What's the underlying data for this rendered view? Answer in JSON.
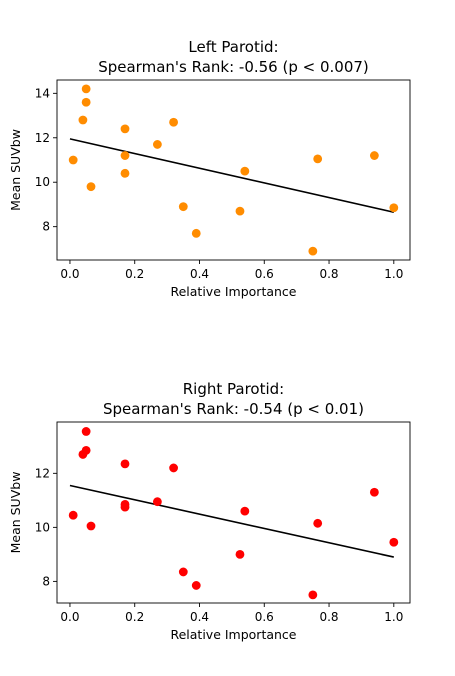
{
  "chart_data": [
    {
      "type": "scatter",
      "title": "Left Parotid:",
      "subtitle": "Spearman's Rank: -0.56 (p < 0.007)",
      "xlabel": "Relative Importance",
      "ylabel": "Mean SUVbw",
      "xlim": [
        -0.04,
        1.05
      ],
      "ylim": [
        6.5,
        14.6
      ],
      "xticks": [
        0.0,
        0.2,
        0.4,
        0.6,
        0.8,
        1.0
      ],
      "xtick_labels": [
        "0.0",
        "0.2",
        "0.4",
        "0.6",
        "0.8",
        "1.0"
      ],
      "yticks": [
        8,
        10,
        12,
        14
      ],
      "ytick_labels": [
        "8",
        "10",
        "12",
        "14"
      ],
      "grid": false,
      "color": "#ff8c00",
      "points": {
        "x": [
          0.01,
          0.04,
          0.05,
          0.05,
          0.065,
          0.17,
          0.17,
          0.17,
          0.27,
          0.32,
          0.35,
          0.39,
          0.525,
          0.54,
          0.75,
          0.765,
          0.94,
          1.0
        ],
        "y": [
          11.0,
          12.8,
          14.2,
          13.6,
          9.8,
          12.4,
          11.2,
          10.4,
          11.7,
          12.7,
          8.9,
          7.7,
          8.7,
          10.5,
          6.9,
          11.05,
          11.2,
          8.85
        ]
      },
      "fit_line": {
        "x": [
          0.0,
          1.0
        ],
        "y": [
          11.95,
          8.65
        ],
        "color": "#000000"
      }
    },
    {
      "type": "scatter",
      "title": "Right Parotid:",
      "subtitle": "Spearman's Rank: -0.54 (p < 0.01)",
      "xlabel": "Relative Importance",
      "ylabel": "Mean SUVbw",
      "xlim": [
        -0.04,
        1.05
      ],
      "ylim": [
        7.2,
        13.9
      ],
      "xticks": [
        0.0,
        0.2,
        0.4,
        0.6,
        0.8,
        1.0
      ],
      "xtick_labels": [
        "0.0",
        "0.2",
        "0.4",
        "0.6",
        "0.8",
        "1.0"
      ],
      "yticks": [
        8,
        10,
        12
      ],
      "ytick_labels": [
        "8",
        "10",
        "12"
      ],
      "grid": false,
      "color": "#ff0000",
      "points": {
        "x": [
          0.01,
          0.04,
          0.05,
          0.05,
          0.065,
          0.17,
          0.17,
          0.17,
          0.27,
          0.32,
          0.35,
          0.39,
          0.525,
          0.54,
          0.75,
          0.765,
          0.94,
          1.0
        ],
        "y": [
          10.45,
          12.7,
          12.85,
          13.55,
          10.05,
          12.35,
          10.85,
          10.75,
          10.95,
          12.2,
          8.35,
          7.85,
          9.0,
          10.6,
          7.5,
          10.15,
          11.3,
          9.45
        ]
      },
      "fit_line": {
        "x": [
          0.0,
          1.0
        ],
        "y": [
          11.55,
          8.9
        ],
        "color": "#000000"
      }
    }
  ]
}
